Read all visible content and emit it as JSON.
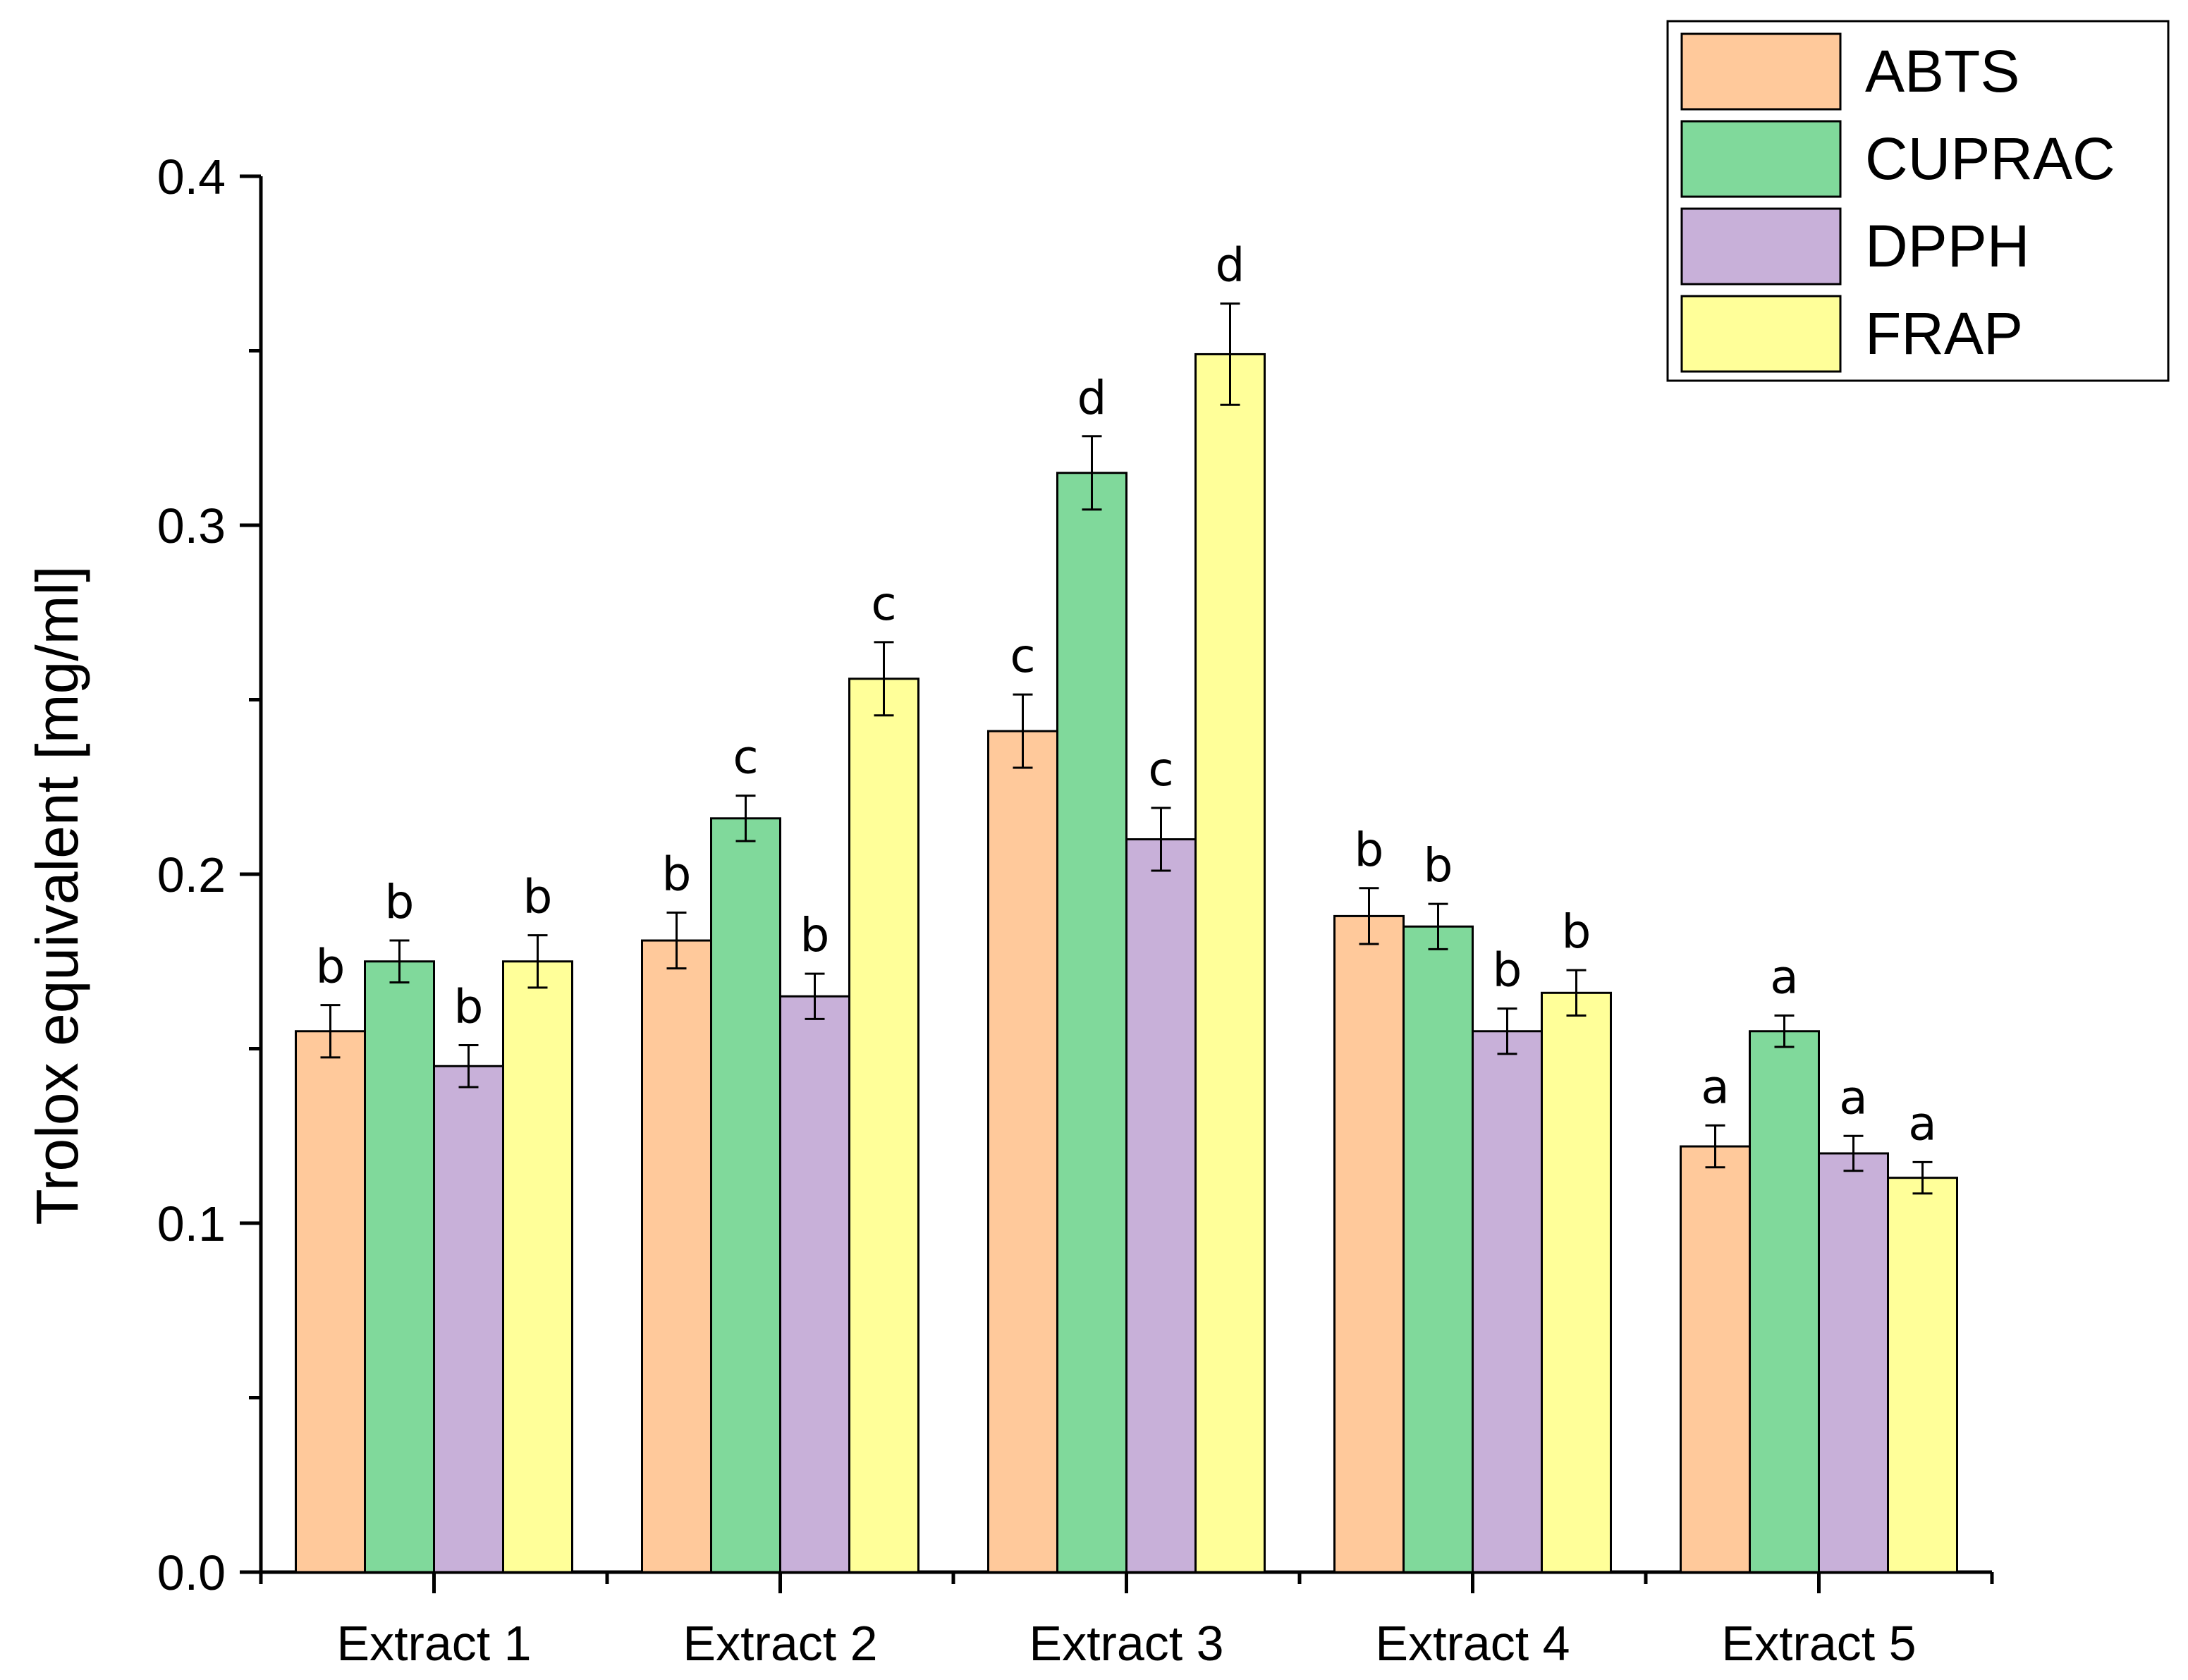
{
  "chart_data": {
    "type": "bar",
    "title": "",
    "xlabel": "",
    "ylabel": "Trolox equivalent [mg/ml]",
    "ylim": [
      0,
      0.4
    ],
    "yticks": [
      "0.0",
      "0.1",
      "0.2",
      "0.3",
      "0.4"
    ],
    "categories": [
      "Extract 1",
      "Extract 2",
      "Extract 3",
      "Extract 4",
      "Extract 5"
    ],
    "series": [
      {
        "name": "ABTS",
        "color": "#FFC99B",
        "values": [
          0.155,
          0.181,
          0.241,
          0.188,
          0.122
        ],
        "errors": [
          0.0075,
          0.008,
          0.0105,
          0.008,
          0.006
        ],
        "significance": [
          "b",
          "b",
          "c",
          "b",
          "a"
        ]
      },
      {
        "name": "CUPRAC",
        "color": "#80D99B",
        "values": [
          0.175,
          0.216,
          0.315,
          0.185,
          0.155
        ],
        "errors": [
          0.006,
          0.0065,
          0.0105,
          0.0065,
          0.0045
        ],
        "significance": [
          "b",
          "c",
          "d",
          "b",
          "a"
        ]
      },
      {
        "name": "DPPH",
        "color": "#C8B0D9",
        "values": [
          0.145,
          0.165,
          0.21,
          0.155,
          0.12
        ],
        "errors": [
          0.006,
          0.0065,
          0.009,
          0.0065,
          0.005
        ],
        "significance": [
          "b",
          "b",
          "c",
          "b",
          "a"
        ]
      },
      {
        "name": "FRAP",
        "color": "#FFFF99",
        "values": [
          0.175,
          0.256,
          0.349,
          0.166,
          0.113
        ],
        "errors": [
          0.0075,
          0.0105,
          0.0145,
          0.0065,
          0.0045
        ],
        "significance": [
          "b",
          "c",
          "d",
          "b",
          "a"
        ]
      }
    ],
    "legend": {
      "position": "top-right",
      "entries": [
        "ABTS",
        "CUPRAC",
        "DPPH",
        "FRAP"
      ]
    },
    "grid": false
  }
}
